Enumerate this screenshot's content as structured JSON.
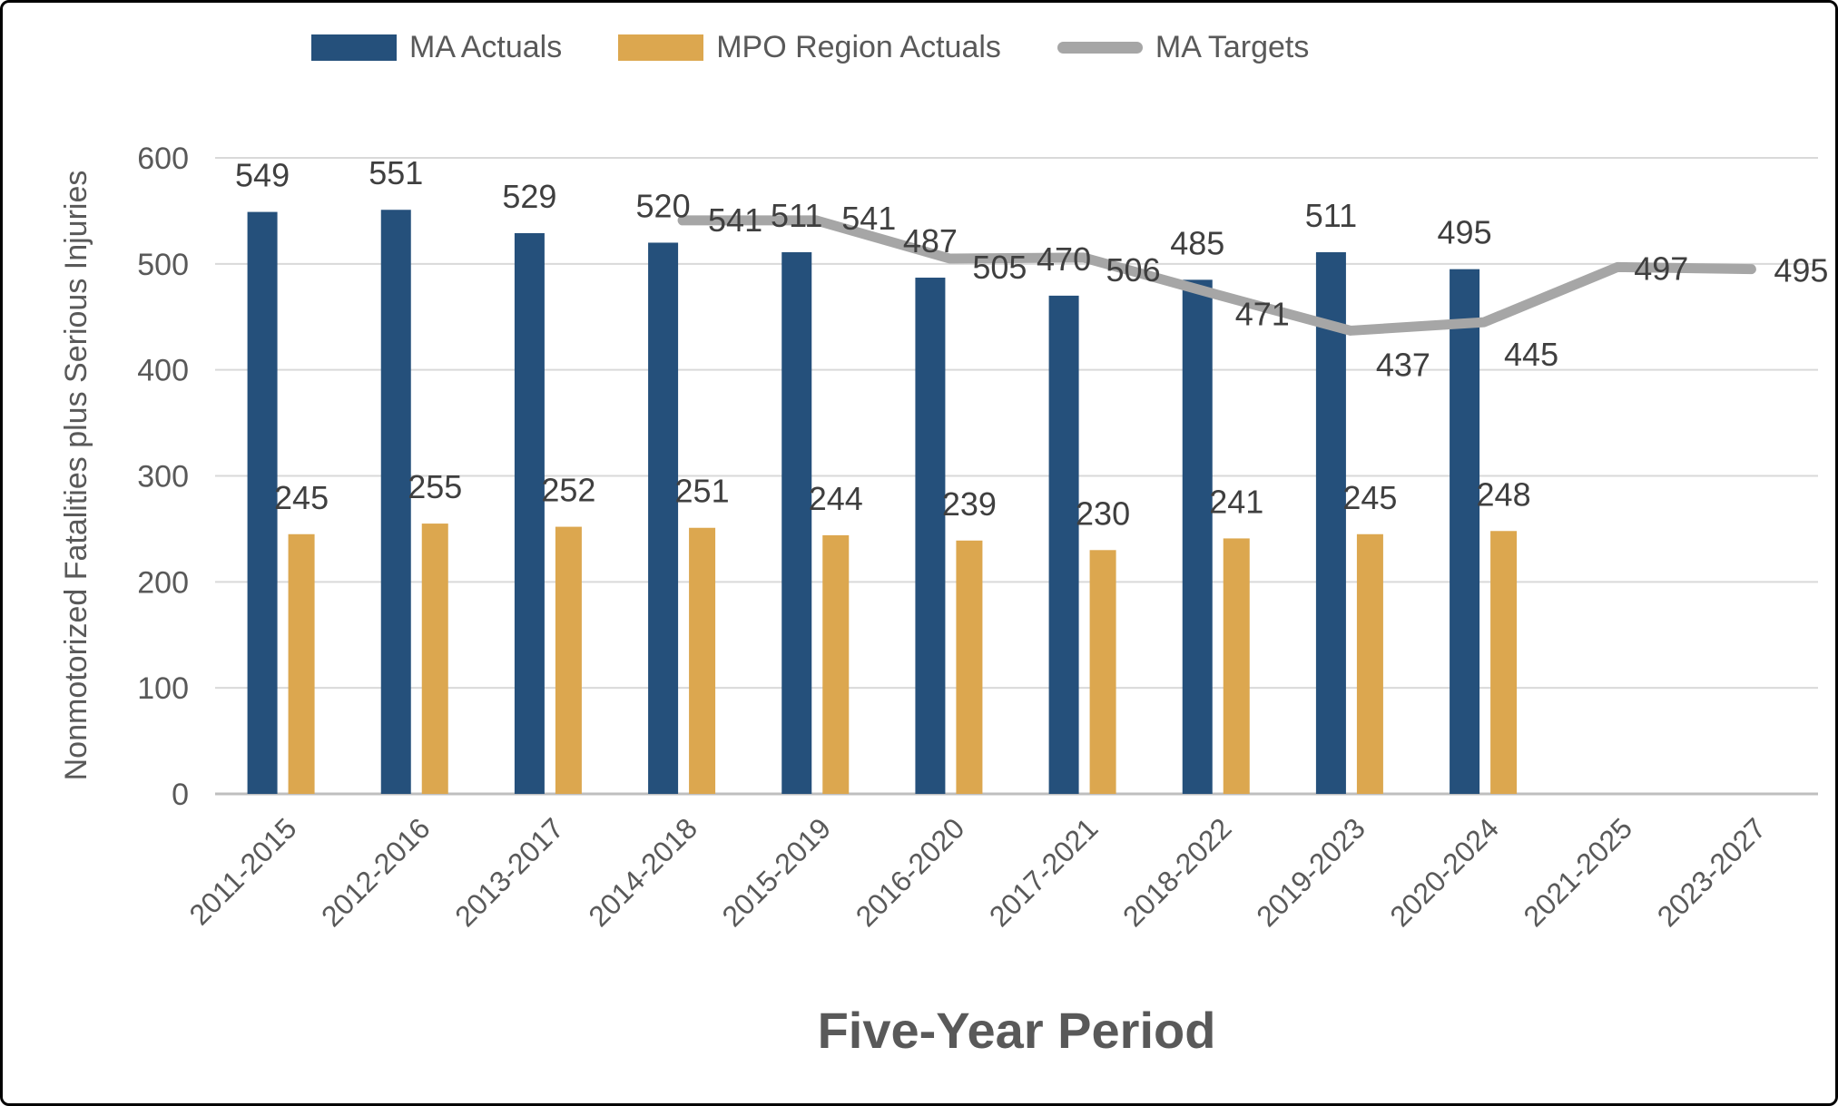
{
  "legend": {
    "items": [
      {
        "label": "MA Actuals",
        "swatch": "box",
        "color": "#25507b"
      },
      {
        "label": "MPO Region Actuals",
        "swatch": "box",
        "color": "#dca74f"
      },
      {
        "label": "MA Targets",
        "swatch": "line",
        "color": "#a6a6a6"
      }
    ]
  },
  "chart_data": {
    "type": "bar+line",
    "title": "",
    "xlabel": "Five-Year Period",
    "ylabel": "Nonmotorized Fatalities plus Serious Injuries",
    "categories": [
      "2011-2015",
      "2012-2016",
      "2013-2017",
      "2014-2018",
      "2015-2019",
      "2016-2020",
      "2017-2021",
      "2018-2022",
      "2019-2023",
      "2020-2024",
      "2021-2025",
      "2023-2027"
    ],
    "series": [
      {
        "name": "MA Actuals",
        "type": "bar",
        "color": "#25507b",
        "values": [
          549,
          551,
          529,
          520,
          511,
          487,
          470,
          485,
          511,
          495,
          null,
          null
        ]
      },
      {
        "name": "MPO Region Actuals",
        "type": "bar",
        "color": "#dca74f",
        "values": [
          245,
          255,
          252,
          251,
          244,
          239,
          230,
          241,
          245,
          248,
          null,
          null
        ]
      },
      {
        "name": "MA Targets",
        "type": "line",
        "color": "#a6a6a6",
        "values": [
          null,
          null,
          null,
          541,
          541,
          505,
          506,
          471,
          437,
          445,
          497,
          495
        ]
      }
    ],
    "ylim": [
      0,
      600
    ],
    "yticks": [
      0,
      100,
      200,
      300,
      400,
      500,
      600
    ],
    "grid": true,
    "legend_position": "top",
    "data_labels": true,
    "colors": {
      "gridline": "#d9d9d9",
      "axis_line": "#bfbfbf",
      "tick_text": "#595959",
      "data_label_text": "#3f3f3f"
    }
  }
}
